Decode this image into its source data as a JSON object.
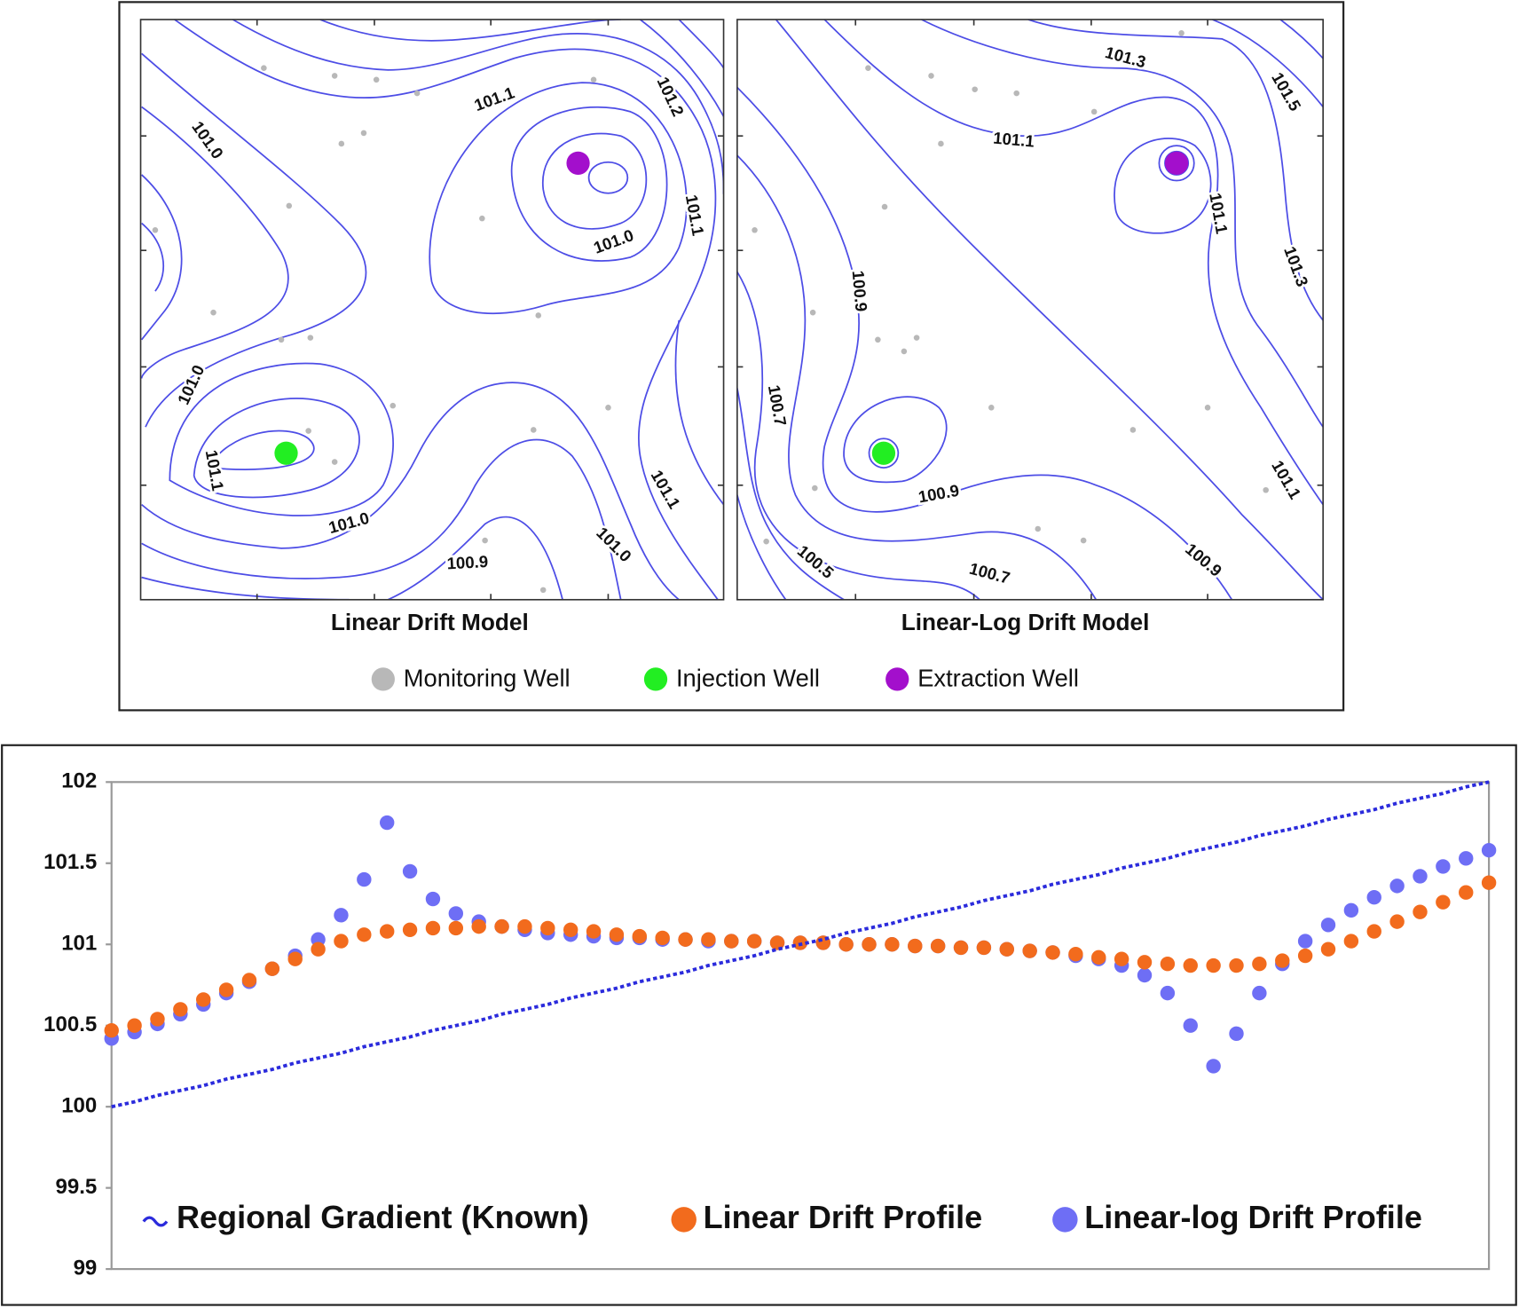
{
  "chart_data": [
    {
      "type": "contour",
      "title": "Linear Drift Model",
      "contour_labels": [
        "101.0",
        "101.1",
        "101.2",
        "101.1",
        "101.0",
        "101.0",
        "101.1",
        "101.0",
        "100.9",
        "101.1",
        "101.0"
      ]
    },
    {
      "type": "contour",
      "title": "Linear-Log Drift Model",
      "contour_labels": [
        "101.3",
        "101.5",
        "101.1",
        "101.1",
        "101.3",
        "100.9",
        "100.7",
        "100.9",
        "100.5",
        "100.7",
        "100.9",
        "101.1"
      ]
    },
    {
      "type": "profile",
      "ylim": [
        99,
        102
      ],
      "yticks": [
        99,
        99.5,
        100,
        100.5,
        101,
        101.5,
        102
      ],
      "series": [
        {
          "name": "Regional Gradient (Known)",
          "color": "#2b2bdc",
          "mode": "dashed-line",
          "values": [
            100.0,
            100.03,
            100.07,
            100.1,
            100.13,
            100.17,
            100.2,
            100.23,
            100.27,
            100.3,
            100.33,
            100.37,
            100.4,
            100.43,
            100.47,
            100.5,
            100.53,
            100.57,
            100.6,
            100.63,
            100.67,
            100.7,
            100.73,
            100.77,
            100.8,
            100.83,
            100.87,
            100.9,
            100.93,
            100.97,
            101.0,
            101.03,
            101.07,
            101.1,
            101.13,
            101.17,
            101.2,
            101.23,
            101.27,
            101.3,
            101.33,
            101.37,
            101.4,
            101.43,
            101.47,
            101.5,
            101.53,
            101.57,
            101.6,
            101.63,
            101.67,
            101.7,
            101.73,
            101.77,
            101.8,
            101.83,
            101.87,
            101.9,
            101.93,
            101.97,
            102.0
          ]
        },
        {
          "name": "Linear Drift Profile",
          "color": "#f26b1d",
          "mode": "markers",
          "values": [
            100.47,
            100.5,
            100.54,
            100.6,
            100.66,
            100.72,
            100.78,
            100.85,
            100.91,
            100.97,
            101.02,
            101.06,
            101.08,
            101.09,
            101.1,
            101.1,
            101.11,
            101.11,
            101.11,
            101.1,
            101.09,
            101.08,
            101.06,
            101.05,
            101.04,
            101.03,
            101.03,
            101.02,
            101.02,
            101.01,
            101.01,
            101.01,
            101.0,
            101.0,
            101.0,
            100.99,
            100.99,
            100.98,
            100.98,
            100.97,
            100.96,
            100.95,
            100.94,
            100.92,
            100.91,
            100.89,
            100.88,
            100.87,
            100.87,
            100.87,
            100.88,
            100.9,
            100.93,
            100.97,
            101.02,
            101.08,
            101.14,
            101.2,
            101.26,
            101.32,
            101.38
          ]
        },
        {
          "name": "Linear-log Drift Profile",
          "color": "#6e6ef5",
          "mode": "markers",
          "values": [
            100.42,
            100.46,
            100.51,
            100.57,
            100.63,
            100.7,
            100.77,
            100.85,
            100.93,
            101.03,
            101.18,
            101.4,
            101.75,
            101.45,
            101.28,
            101.19,
            101.14,
            101.11,
            101.09,
            101.07,
            101.06,
            101.05,
            101.04,
            101.04,
            101.03,
            101.03,
            101.02,
            101.02,
            101.02,
            101.01,
            101.01,
            101.01,
            101.0,
            101.0,
            101.0,
            100.99,
            100.99,
            100.98,
            100.98,
            100.97,
            100.96,
            100.95,
            100.93,
            100.91,
            100.87,
            100.81,
            100.7,
            100.5,
            100.25,
            100.45,
            100.7,
            100.88,
            101.02,
            101.12,
            101.21,
            101.29,
            101.36,
            101.42,
            101.48,
            101.53,
            101.58
          ]
        }
      ]
    }
  ],
  "well_legend": [
    {
      "name": "Monitoring Well",
      "color": "#b8b8b8"
    },
    {
      "name": "Injection Well",
      "color": "#22ee22"
    },
    {
      "name": "Extraction Well",
      "color": "#a30fcc"
    }
  ]
}
